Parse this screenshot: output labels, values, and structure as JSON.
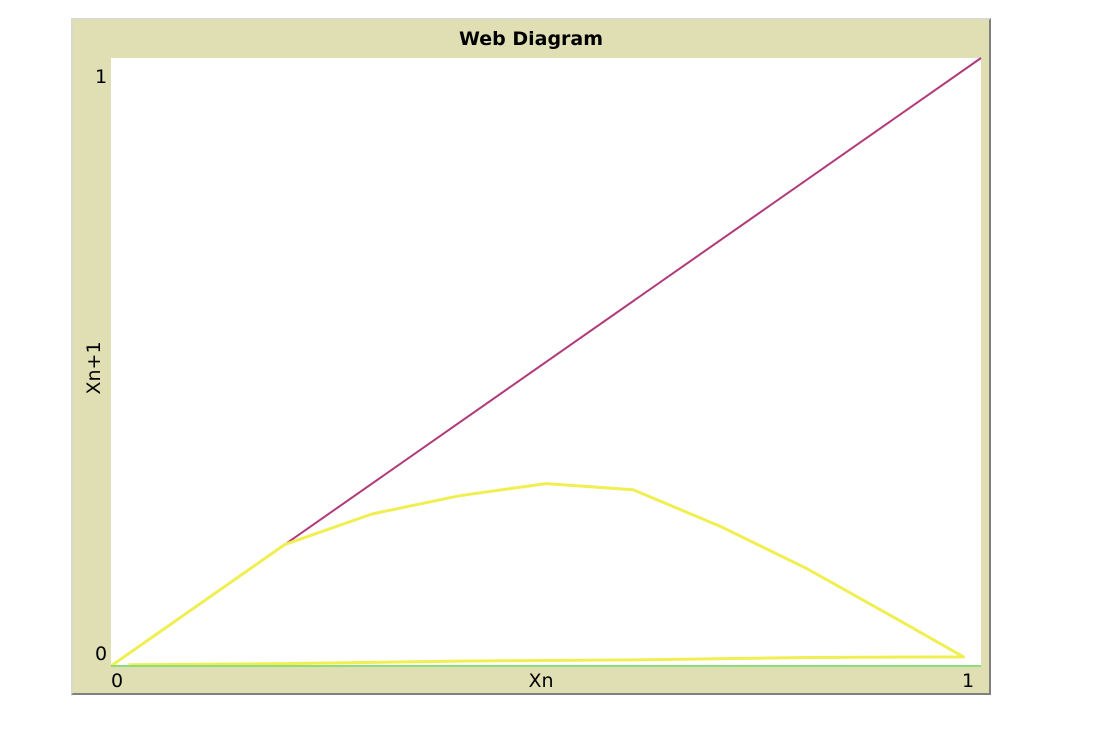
{
  "chart_data": {
    "type": "line",
    "title": "Web Diagram",
    "xlabel": "Xn",
    "ylabel": "Xn+1",
    "xlim": [
      0,
      1
    ],
    "ylim": [
      0,
      1
    ],
    "x_ticks": [
      "0",
      "1"
    ],
    "y_ticks": [
      "0",
      "1"
    ],
    "grid": false,
    "legend": "none",
    "series": [
      {
        "color": "#b03a7a",
        "x": [
          0,
          1
        ],
        "y": [
          0,
          1
        ]
      },
      {
        "color": "#f0ef52",
        "x": [
          0,
          0.02,
          0.1,
          0.2,
          0.3,
          0.4,
          0.5,
          0.6,
          0.7,
          0.8,
          0.9,
          0.98,
          0.98,
          0.8,
          0.6,
          0.4,
          0.2,
          0.02
        ],
        "y": [
          0,
          0.02,
          0.1,
          0.2,
          0.25,
          0.28,
          0.3,
          0.29,
          0.23,
          0.16,
          0.08,
          0.015,
          0.015,
          0.014,
          0.01,
          0.008,
          0.004,
          0.002
        ]
      },
      {
        "color": "#8fdc7a",
        "x": [
          0,
          1
        ],
        "y": [
          0,
          0
        ]
      }
    ]
  }
}
